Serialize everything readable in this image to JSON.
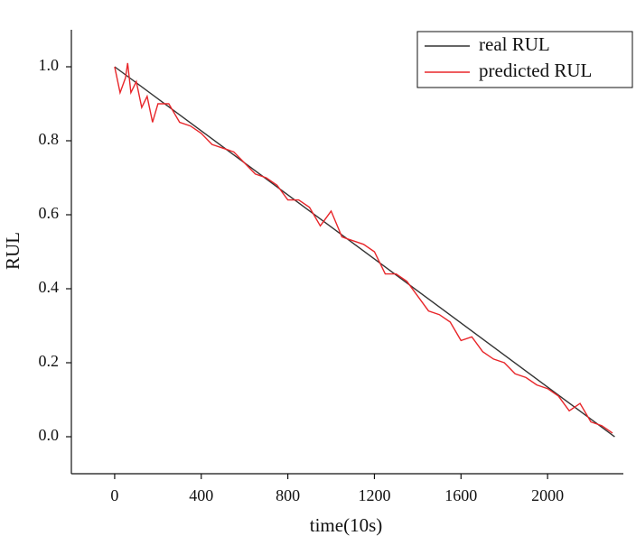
{
  "chart_data": {
    "type": "line",
    "x_label": "time(10s)",
    "y_label": "RUL",
    "xlim": [
      -200,
      2350
    ],
    "xticks": [
      0,
      400,
      800,
      1200,
      1600,
      2000
    ],
    "ylim": [
      -0.1,
      1.1
    ],
    "yticks": [
      {
        "value": 0,
        "label": "0.0"
      },
      0.2,
      0.4,
      0.6,
      0.8,
      {
        "value": 1,
        "label": "1.0"
      }
    ],
    "legend": "upper right",
    "series": [
      {
        "name": "real RUL",
        "color": "#333333",
        "x": [
          0,
          2310
        ],
        "values": [
          1.0,
          0.0
        ]
      },
      {
        "name": "predicted RUL",
        "color": "#e8262a",
        "x": [
          0,
          25,
          50,
          60,
          75,
          100,
          125,
          150,
          175,
          200,
          250,
          300,
          350,
          400,
          450,
          500,
          550,
          600,
          650,
          700,
          750,
          800,
          850,
          900,
          950,
          1000,
          1050,
          1100,
          1150,
          1200,
          1250,
          1300,
          1350,
          1400,
          1450,
          1500,
          1550,
          1600,
          1650,
          1700,
          1750,
          1800,
          1850,
          1900,
          1950,
          2000,
          2050,
          2100,
          2150,
          2200,
          2250,
          2300
        ],
        "values": [
          1.0,
          0.93,
          0.97,
          1.01,
          0.93,
          0.96,
          0.89,
          0.92,
          0.85,
          0.9,
          0.9,
          0.85,
          0.84,
          0.82,
          0.79,
          0.78,
          0.77,
          0.74,
          0.71,
          0.7,
          0.68,
          0.64,
          0.64,
          0.62,
          0.57,
          0.61,
          0.54,
          0.53,
          0.52,
          0.5,
          0.44,
          0.44,
          0.42,
          0.38,
          0.34,
          0.33,
          0.31,
          0.26,
          0.27,
          0.23,
          0.21,
          0.2,
          0.17,
          0.16,
          0.14,
          0.13,
          0.11,
          0.07,
          0.09,
          0.04,
          0.03,
          0.01
        ]
      }
    ]
  }
}
